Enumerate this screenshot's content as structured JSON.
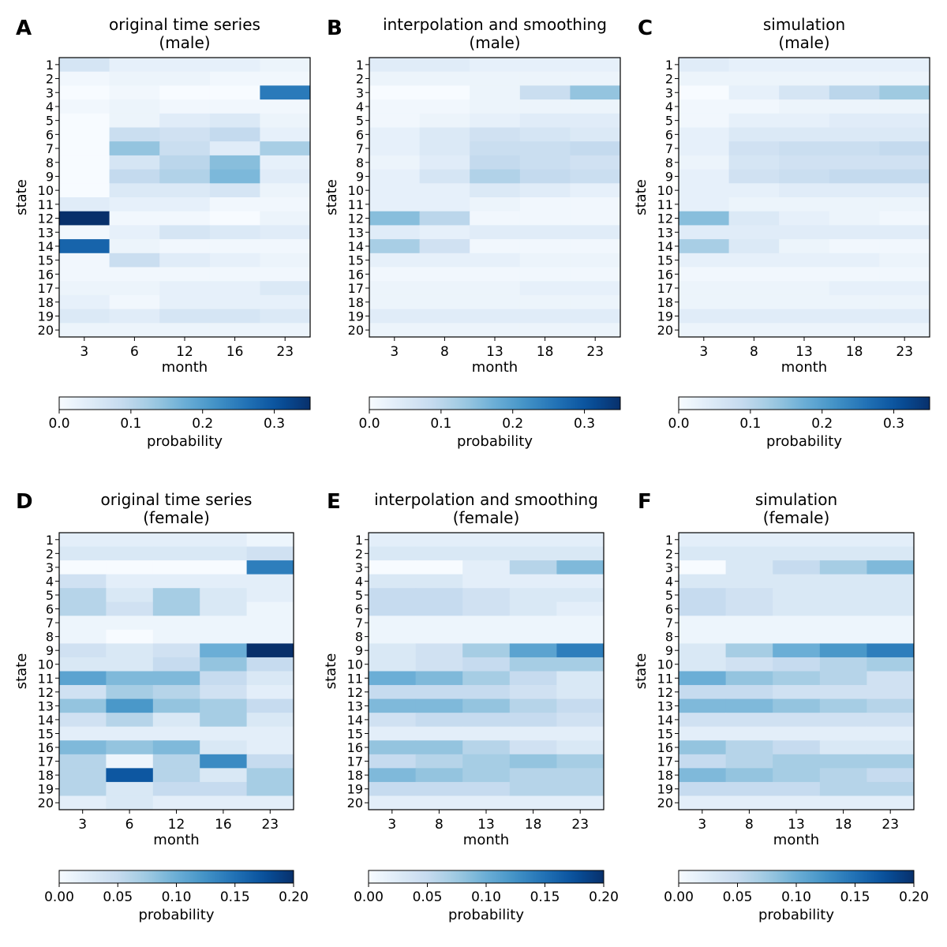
{
  "chart_data": [
    {
      "type": "heatmap",
      "panel_label": "A",
      "title_line1": "original time series",
      "title_line2": "(male)",
      "xlabel": "month",
      "ylabel": "state",
      "x_ticks": [
        "3",
        "6",
        "12",
        "16",
        "23"
      ],
      "y_ticks": [
        "1",
        "2",
        "3",
        "4",
        "5",
        "6",
        "7",
        "8",
        "9",
        "10",
        "11",
        "12",
        "13",
        "14",
        "15",
        "16",
        "17",
        "18",
        "19",
        "20"
      ],
      "colorbar_label": "probability",
      "colorbar_ticks": [
        "0.0",
        "0.1",
        "0.2",
        "0.3"
      ],
      "colorbar_tick_values": [
        0,
        0.1,
        0.2,
        0.3
      ],
      "vmax": 0.35,
      "values": [
        [
          0.06,
          0.03,
          0.03,
          0.03,
          0.02
        ],
        [
          0.01,
          0.02,
          0.02,
          0.01,
          0.01
        ],
        [
          0.0,
          0.01,
          0.0,
          0.0,
          0.25
        ],
        [
          0.01,
          0.02,
          0.01,
          0.01,
          0.01
        ],
        [
          0.0,
          0.02,
          0.04,
          0.05,
          0.02
        ],
        [
          0.0,
          0.08,
          0.07,
          0.09,
          0.03
        ],
        [
          0.0,
          0.14,
          0.08,
          0.04,
          0.12
        ],
        [
          0.0,
          0.06,
          0.1,
          0.15,
          0.03
        ],
        [
          0.0,
          0.09,
          0.11,
          0.16,
          0.04
        ],
        [
          0.0,
          0.05,
          0.05,
          0.06,
          0.02
        ],
        [
          0.04,
          0.03,
          0.03,
          0.01,
          0.01
        ],
        [
          0.35,
          0.01,
          0.01,
          0.0,
          0.02
        ],
        [
          0.01,
          0.03,
          0.06,
          0.05,
          0.04
        ],
        [
          0.28,
          0.02,
          0.01,
          0.01,
          0.01
        ],
        [
          0.01,
          0.08,
          0.04,
          0.03,
          0.02
        ],
        [
          0.01,
          0.01,
          0.01,
          0.01,
          0.01
        ],
        [
          0.02,
          0.02,
          0.03,
          0.03,
          0.05
        ],
        [
          0.03,
          0.01,
          0.03,
          0.03,
          0.03
        ],
        [
          0.05,
          0.04,
          0.06,
          0.06,
          0.05
        ],
        [
          0.02,
          0.02,
          0.02,
          0.02,
          0.02
        ]
      ]
    },
    {
      "type": "heatmap",
      "panel_label": "B",
      "title_line1": "interpolation and smoothing",
      "title_line2": "(male)",
      "xlabel": "month",
      "ylabel": "state",
      "x_ticks": [
        "3",
        "8",
        "13",
        "18",
        "23"
      ],
      "y_ticks": [
        "1",
        "2",
        "3",
        "4",
        "5",
        "6",
        "7",
        "8",
        "9",
        "10",
        "11",
        "12",
        "13",
        "14",
        "15",
        "16",
        "17",
        "18",
        "19",
        "20"
      ],
      "colorbar_label": "probability",
      "colorbar_ticks": [
        "0.0",
        "0.1",
        "0.2",
        "0.3"
      ],
      "colorbar_tick_values": [
        0,
        0.1,
        0.2,
        0.3
      ],
      "vmax": 0.35,
      "values": [
        [
          0.04,
          0.04,
          0.03,
          0.03,
          0.03
        ],
        [
          0.02,
          0.02,
          0.02,
          0.02,
          0.02
        ],
        [
          0.0,
          0.0,
          0.02,
          0.08,
          0.14
        ],
        [
          0.01,
          0.01,
          0.02,
          0.02,
          0.02
        ],
        [
          0.01,
          0.02,
          0.03,
          0.04,
          0.04
        ],
        [
          0.03,
          0.05,
          0.07,
          0.06,
          0.05
        ],
        [
          0.03,
          0.05,
          0.08,
          0.08,
          0.09
        ],
        [
          0.02,
          0.04,
          0.09,
          0.08,
          0.07
        ],
        [
          0.03,
          0.06,
          0.11,
          0.09,
          0.08
        ],
        [
          0.03,
          0.03,
          0.05,
          0.04,
          0.03
        ],
        [
          0.03,
          0.03,
          0.02,
          0.01,
          0.01
        ],
        [
          0.15,
          0.1,
          0.01,
          0.01,
          0.01
        ],
        [
          0.04,
          0.03,
          0.04,
          0.04,
          0.04
        ],
        [
          0.12,
          0.07,
          0.01,
          0.01,
          0.01
        ],
        [
          0.03,
          0.03,
          0.03,
          0.02,
          0.02
        ],
        [
          0.01,
          0.01,
          0.01,
          0.01,
          0.01
        ],
        [
          0.02,
          0.02,
          0.02,
          0.03,
          0.03
        ],
        [
          0.02,
          0.02,
          0.02,
          0.02,
          0.02
        ],
        [
          0.04,
          0.04,
          0.04,
          0.04,
          0.04
        ],
        [
          0.02,
          0.02,
          0.02,
          0.02,
          0.02
        ]
      ]
    },
    {
      "type": "heatmap",
      "panel_label": "C",
      "title_line1": "simulation",
      "title_line2": "(male)",
      "xlabel": "month",
      "ylabel": "state",
      "x_ticks": [
        "3",
        "8",
        "13",
        "18",
        "23"
      ],
      "y_ticks": [
        "1",
        "2",
        "3",
        "4",
        "5",
        "6",
        "7",
        "8",
        "9",
        "10",
        "11",
        "12",
        "13",
        "14",
        "15",
        "16",
        "17",
        "18",
        "19",
        "20"
      ],
      "colorbar_label": "probability",
      "colorbar_ticks": [
        "0.0",
        "0.1",
        "0.2",
        "0.3"
      ],
      "colorbar_tick_values": [
        0,
        0.1,
        0.2,
        0.3
      ],
      "vmax": 0.35,
      "values": [
        [
          0.04,
          0.03,
          0.03,
          0.03,
          0.03
        ],
        [
          0.02,
          0.02,
          0.02,
          0.02,
          0.02
        ],
        [
          0.0,
          0.03,
          0.06,
          0.1,
          0.13
        ],
        [
          0.01,
          0.01,
          0.02,
          0.02,
          0.02
        ],
        [
          0.01,
          0.03,
          0.03,
          0.04,
          0.04
        ],
        [
          0.03,
          0.05,
          0.05,
          0.05,
          0.05
        ],
        [
          0.03,
          0.07,
          0.08,
          0.08,
          0.09
        ],
        [
          0.02,
          0.06,
          0.07,
          0.07,
          0.07
        ],
        [
          0.03,
          0.07,
          0.08,
          0.09,
          0.09
        ],
        [
          0.03,
          0.03,
          0.04,
          0.04,
          0.04
        ],
        [
          0.03,
          0.02,
          0.02,
          0.02,
          0.02
        ],
        [
          0.15,
          0.05,
          0.03,
          0.02,
          0.01
        ],
        [
          0.04,
          0.04,
          0.04,
          0.04,
          0.04
        ],
        [
          0.12,
          0.05,
          0.02,
          0.01,
          0.01
        ],
        [
          0.03,
          0.03,
          0.03,
          0.03,
          0.02
        ],
        [
          0.01,
          0.01,
          0.01,
          0.01,
          0.01
        ],
        [
          0.02,
          0.02,
          0.02,
          0.03,
          0.03
        ],
        [
          0.02,
          0.02,
          0.02,
          0.02,
          0.02
        ],
        [
          0.04,
          0.04,
          0.04,
          0.04,
          0.04
        ],
        [
          0.02,
          0.02,
          0.02,
          0.02,
          0.02
        ]
      ]
    },
    {
      "type": "heatmap",
      "panel_label": "D",
      "title_line1": "original time series",
      "title_line2": "(female)",
      "xlabel": "month",
      "ylabel": "state",
      "x_ticks": [
        "3",
        "6",
        "12",
        "16",
        "23"
      ],
      "y_ticks": [
        "1",
        "2",
        "3",
        "4",
        "5",
        "6",
        "7",
        "8",
        "9",
        "10",
        "11",
        "12",
        "13",
        "14",
        "15",
        "16",
        "17",
        "18",
        "19",
        "20"
      ],
      "colorbar_label": "probability",
      "colorbar_ticks": [
        "0.00",
        "0.05",
        "0.10",
        "0.15",
        "0.20"
      ],
      "colorbar_tick_values": [
        0,
        0.05,
        0.1,
        0.15,
        0.2
      ],
      "vmax": 0.2,
      "values": [
        [
          0.02,
          0.02,
          0.02,
          0.02,
          0.01
        ],
        [
          0.03,
          0.03,
          0.03,
          0.03,
          0.04
        ],
        [
          0.0,
          0.0,
          0.0,
          0.0,
          0.14
        ],
        [
          0.04,
          0.02,
          0.02,
          0.02,
          0.02
        ],
        [
          0.06,
          0.03,
          0.07,
          0.03,
          0.02
        ],
        [
          0.06,
          0.04,
          0.07,
          0.03,
          0.01
        ],
        [
          0.01,
          0.01,
          0.01,
          0.01,
          0.01
        ],
        [
          0.01,
          0.0,
          0.01,
          0.01,
          0.01
        ],
        [
          0.04,
          0.03,
          0.04,
          0.1,
          0.2
        ],
        [
          0.03,
          0.03,
          0.05,
          0.08,
          0.05
        ],
        [
          0.11,
          0.09,
          0.09,
          0.05,
          0.03
        ],
        [
          0.04,
          0.07,
          0.06,
          0.04,
          0.02
        ],
        [
          0.08,
          0.12,
          0.08,
          0.07,
          0.05
        ],
        [
          0.04,
          0.06,
          0.03,
          0.07,
          0.03
        ],
        [
          0.02,
          0.02,
          0.02,
          0.02,
          0.02
        ],
        [
          0.09,
          0.08,
          0.09,
          0.03,
          0.02
        ],
        [
          0.06,
          0.01,
          0.06,
          0.13,
          0.05
        ],
        [
          0.06,
          0.17,
          0.06,
          0.03,
          0.07
        ],
        [
          0.06,
          0.03,
          0.05,
          0.05,
          0.07
        ],
        [
          0.02,
          0.03,
          0.02,
          0.02,
          0.02
        ]
      ]
    },
    {
      "type": "heatmap",
      "panel_label": "E",
      "title_line1": "interpolation and smoothing",
      "title_line2": "(female)",
      "xlabel": "month",
      "ylabel": "state",
      "x_ticks": [
        "3",
        "8",
        "13",
        "18",
        "23"
      ],
      "y_ticks": [
        "1",
        "2",
        "3",
        "4",
        "5",
        "6",
        "7",
        "8",
        "9",
        "10",
        "11",
        "12",
        "13",
        "14",
        "15",
        "16",
        "17",
        "18",
        "19",
        "20"
      ],
      "colorbar_label": "probability",
      "colorbar_ticks": [
        "0.00",
        "0.05",
        "0.10",
        "0.15",
        "0.20"
      ],
      "colorbar_tick_values": [
        0,
        0.05,
        0.1,
        0.15,
        0.2
      ],
      "vmax": 0.2,
      "values": [
        [
          0.02,
          0.02,
          0.02,
          0.02,
          0.02
        ],
        [
          0.03,
          0.03,
          0.03,
          0.03,
          0.03
        ],
        [
          0.0,
          0.0,
          0.02,
          0.06,
          0.09
        ],
        [
          0.03,
          0.03,
          0.02,
          0.02,
          0.02
        ],
        [
          0.05,
          0.05,
          0.04,
          0.03,
          0.03
        ],
        [
          0.05,
          0.05,
          0.04,
          0.03,
          0.02
        ],
        [
          0.01,
          0.01,
          0.01,
          0.01,
          0.01
        ],
        [
          0.01,
          0.01,
          0.01,
          0.01,
          0.01
        ],
        [
          0.03,
          0.04,
          0.07,
          0.11,
          0.14
        ],
        [
          0.03,
          0.04,
          0.05,
          0.07,
          0.07
        ],
        [
          0.1,
          0.09,
          0.07,
          0.05,
          0.03
        ],
        [
          0.05,
          0.05,
          0.05,
          0.04,
          0.03
        ],
        [
          0.09,
          0.09,
          0.08,
          0.06,
          0.05
        ],
        [
          0.04,
          0.05,
          0.05,
          0.05,
          0.04
        ],
        [
          0.02,
          0.02,
          0.02,
          0.02,
          0.02
        ],
        [
          0.08,
          0.08,
          0.06,
          0.04,
          0.03
        ],
        [
          0.05,
          0.06,
          0.07,
          0.08,
          0.07
        ],
        [
          0.09,
          0.08,
          0.07,
          0.06,
          0.06
        ],
        [
          0.05,
          0.05,
          0.05,
          0.06,
          0.06
        ],
        [
          0.02,
          0.02,
          0.02,
          0.02,
          0.02
        ]
      ]
    },
    {
      "type": "heatmap",
      "panel_label": "F",
      "title_line1": "simulation",
      "title_line2": "(female)",
      "xlabel": "month",
      "ylabel": "state",
      "x_ticks": [
        "3",
        "8",
        "13",
        "18",
        "23"
      ],
      "y_ticks": [
        "1",
        "2",
        "3",
        "4",
        "5",
        "6",
        "7",
        "8",
        "9",
        "10",
        "11",
        "12",
        "13",
        "14",
        "15",
        "16",
        "17",
        "18",
        "19",
        "20"
      ],
      "colorbar_label": "probability",
      "colorbar_ticks": [
        "0.00",
        "0.05",
        "0.10",
        "0.15",
        "0.20"
      ],
      "colorbar_tick_values": [
        0,
        0.05,
        0.1,
        0.15,
        0.2
      ],
      "vmax": 0.2,
      "values": [
        [
          0.02,
          0.02,
          0.02,
          0.02,
          0.02
        ],
        [
          0.03,
          0.03,
          0.03,
          0.03,
          0.03
        ],
        [
          0.0,
          0.03,
          0.05,
          0.07,
          0.09
        ],
        [
          0.03,
          0.03,
          0.03,
          0.03,
          0.03
        ],
        [
          0.05,
          0.04,
          0.03,
          0.03,
          0.03
        ],
        [
          0.05,
          0.04,
          0.03,
          0.03,
          0.03
        ],
        [
          0.01,
          0.01,
          0.01,
          0.01,
          0.01
        ],
        [
          0.01,
          0.01,
          0.01,
          0.01,
          0.01
        ],
        [
          0.03,
          0.07,
          0.1,
          0.12,
          0.14
        ],
        [
          0.03,
          0.04,
          0.05,
          0.06,
          0.07
        ],
        [
          0.1,
          0.08,
          0.07,
          0.06,
          0.04
        ],
        [
          0.05,
          0.05,
          0.04,
          0.04,
          0.04
        ],
        [
          0.09,
          0.09,
          0.08,
          0.07,
          0.06
        ],
        [
          0.04,
          0.04,
          0.04,
          0.04,
          0.04
        ],
        [
          0.02,
          0.02,
          0.02,
          0.02,
          0.02
        ],
        [
          0.08,
          0.06,
          0.05,
          0.03,
          0.03
        ],
        [
          0.05,
          0.06,
          0.07,
          0.07,
          0.07
        ],
        [
          0.09,
          0.08,
          0.07,
          0.06,
          0.05
        ],
        [
          0.05,
          0.05,
          0.05,
          0.06,
          0.06
        ],
        [
          0.02,
          0.02,
          0.02,
          0.02,
          0.02
        ]
      ]
    }
  ]
}
